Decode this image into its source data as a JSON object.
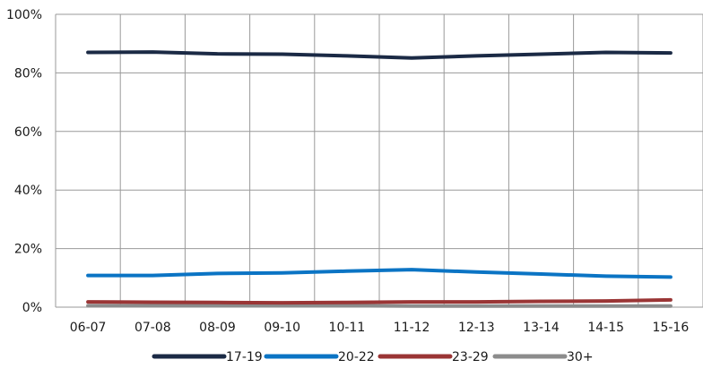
{
  "chart_data": {
    "type": "line",
    "categories": [
      "06-07",
      "07-08",
      "08-09",
      "09-10",
      "10-11",
      "11-12",
      "12-13",
      "13-14",
      "14-15",
      "15-16"
    ],
    "ylim": [
      0,
      100
    ],
    "y_ticks": [
      "0%",
      "20%",
      "40%",
      "60%",
      "80%",
      "100%"
    ],
    "y_tick_values": [
      0,
      20,
      40,
      60,
      80,
      100
    ],
    "grid": true,
    "legend_position": "bottom",
    "series": [
      {
        "name": "17-19",
        "color": "#1b2a45",
        "values": [
          87.0,
          87.1,
          86.5,
          86.4,
          85.8,
          85.1,
          85.8,
          86.4,
          87.0,
          86.8
        ]
      },
      {
        "name": "20-22",
        "color": "#0b74c4",
        "values": [
          10.8,
          10.8,
          11.5,
          11.7,
          12.3,
          12.8,
          12.0,
          11.3,
          10.6,
          10.3
        ]
      },
      {
        "name": "23-29",
        "color": "#9a3535",
        "values": [
          1.8,
          1.7,
          1.6,
          1.5,
          1.6,
          1.8,
          1.8,
          2.0,
          2.1,
          2.5
        ]
      },
      {
        "name": "30+",
        "color": "#8c8c8c",
        "values": [
          0.5,
          0.5,
          0.5,
          0.5,
          0.5,
          0.4,
          0.4,
          0.4,
          0.4,
          0.4
        ]
      }
    ]
  }
}
